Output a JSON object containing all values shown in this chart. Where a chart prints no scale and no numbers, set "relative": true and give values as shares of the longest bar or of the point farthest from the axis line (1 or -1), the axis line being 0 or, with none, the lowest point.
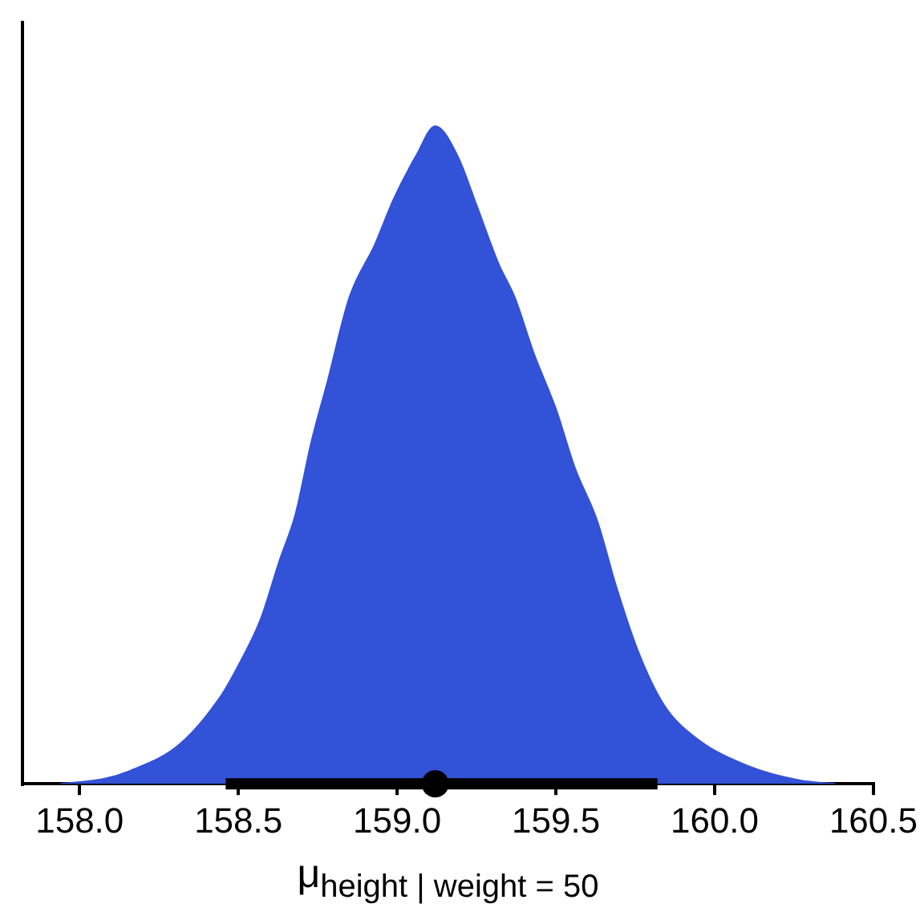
{
  "chart_data": {
    "type": "area",
    "relative": true,
    "xlabel": "μ$_{height | weight = 50}$",
    "xlim": [
      157.82,
      160.5
    ],
    "xticks": [
      {
        "value": 158,
        "label": "158.0"
      },
      158.5,
      {
        "value": 159,
        "label": "159.0"
      },
      159.5,
      {
        "value": 160,
        "label": "160.0"
      },
      160.5
    ],
    "tick_labels": "x",
    "series": [
      {
        "type": "area",
        "color": "#3252d8",
        "x": [
          157.94,
          158.08,
          158.16,
          158.31,
          158.44,
          158.5,
          158.57,
          158.63,
          158.68,
          158.73,
          158.78,
          158.85,
          158.93,
          158.99,
          159.06,
          159.12,
          159.19,
          159.25,
          159.32,
          159.37,
          159.43,
          159.5,
          159.56,
          159.63,
          159.69,
          159.76,
          159.84,
          159.94,
          160.1,
          160.27,
          160.38
        ],
        "values": [
          0,
          0.008,
          0.02,
          0.058,
          0.13,
          0.18,
          0.25,
          0.34,
          0.41,
          0.52,
          0.61,
          0.74,
          0.82,
          0.89,
          0.955,
          1,
          0.955,
          0.88,
          0.79,
          0.74,
          0.655,
          0.57,
          0.48,
          0.4,
          0.3,
          0.2,
          0.12,
          0.07,
          0.028,
          0.005,
          0
        ]
      },
      {
        "type": "scatter",
        "color": "#000000",
        "marker": "circle",
        "x": [
          159.12
        ],
        "values": [
          0
        ],
        "xerrors": [
          [
            158.46,
            159.82
          ]
        ]
      }
    ]
  }
}
